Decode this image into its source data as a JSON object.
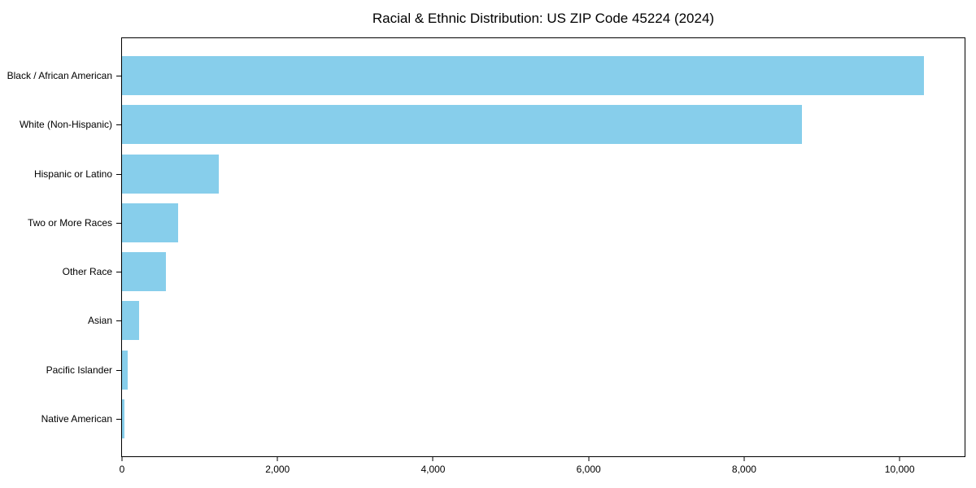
{
  "chart_data": {
    "type": "bar",
    "orientation": "horizontal",
    "title": "Racial & Ethnic Distribution: US ZIP Code 45224 (2024)",
    "categories": [
      "Black / African American",
      "White (Non-Hispanic)",
      "Hispanic or Latino",
      "Two or More Races",
      "Other Race",
      "Asian",
      "Pacific Islander",
      "Native American"
    ],
    "values": [
      10310,
      8740,
      1240,
      720,
      560,
      220,
      70,
      30
    ],
    "xlabel": "",
    "ylabel": "",
    "xlim": [
      0,
      10835
    ],
    "x_ticks": [
      0,
      2000,
      4000,
      6000,
      8000,
      10000
    ],
    "x_tick_labels": [
      "0",
      "2,000",
      "4,000",
      "6,000",
      "8,000",
      "10,000"
    ],
    "bar_color": "#87CEEB",
    "spine_color": "#000000",
    "text_color": "#000000",
    "grid": false,
    "legend_position": "none"
  }
}
